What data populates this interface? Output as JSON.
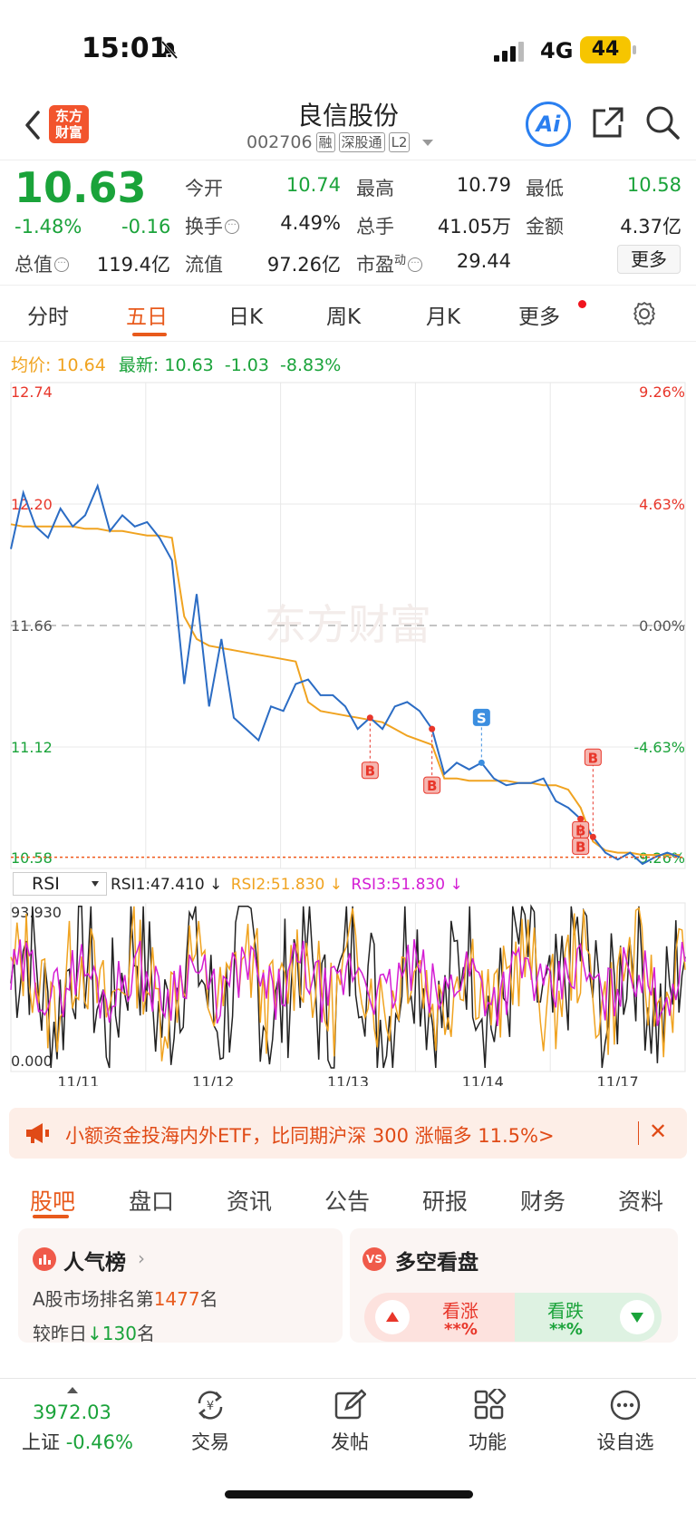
{
  "status_bar": {
    "time": "15:01",
    "network": "4G",
    "battery": "44"
  },
  "header": {
    "logo_text": "东方\n财富",
    "stock_name": "良信股份",
    "code": "002706",
    "tags": [
      "融",
      "深股通",
      "L2"
    ],
    "ai_label": "Ai"
  },
  "quote": {
    "price": "10.63",
    "change_pct": "-1.48%",
    "change_abs": "-0.16",
    "open_label": "今开",
    "open": "10.74",
    "high_label": "最高",
    "high": "10.79",
    "low_label": "最低",
    "low": "10.58",
    "turnover_label": "换手",
    "turnover": "4.49%",
    "volume_label": "总手",
    "volume": "41.05万",
    "amount_label": "金额",
    "amount": "4.37亿",
    "mktcap_label": "总值",
    "mktcap": "119.4亿",
    "float_label": "流值",
    "float_cap": "97.26亿",
    "pe_label": "市盈",
    "pe_sup": "动",
    "pe": "29.44",
    "more_label": "更多"
  },
  "chart_tabs": [
    "分时",
    "五日",
    "日K",
    "周K",
    "月K",
    "更多"
  ],
  "active_chart_tab": "五日",
  "avg_line": {
    "avg_label": "均价:",
    "avg": "10.64",
    "latest_label": "最新:",
    "latest": "10.63",
    "chg": "-1.03",
    "pct": "-8.83%"
  },
  "rsi": {
    "selector": "RSI",
    "rsi1": "RSI1:47.410 ↓",
    "rsi2": "RSI2:51.830 ↓",
    "rsi3": "RSI3:51.830 ↓"
  },
  "chart_data": {
    "type": "line",
    "x_ticks": [
      "11/11",
      "11/12",
      "11/13",
      "11/14",
      "11/17"
    ],
    "y_left_ticks": [
      "12.74",
      "12.20",
      "11.66",
      "11.12",
      "10.58"
    ],
    "y_right_ticks": [
      "9.26%",
      "4.63%",
      "0.00%",
      "-4.63%",
      "-9.26%"
    ],
    "ylim": [
      10.58,
      12.74
    ],
    "prev_close": 11.66,
    "last_price": 10.63,
    "series": [
      {
        "name": "价格",
        "color": "#2b6cc4",
        "values": [
          12.0,
          12.25,
          12.1,
          12.05,
          12.18,
          12.1,
          12.15,
          12.28,
          12.08,
          12.15,
          12.1,
          12.12,
          12.05,
          11.95,
          11.4,
          11.8,
          11.3,
          11.6,
          11.25,
          11.2,
          11.15,
          11.3,
          11.28,
          11.4,
          11.42,
          11.35,
          11.35,
          11.3,
          11.2,
          11.25,
          11.2,
          11.3,
          11.32,
          11.28,
          11.2,
          11.0,
          11.05,
          11.02,
          11.05,
          10.98,
          10.95,
          10.96,
          10.96,
          10.98,
          10.88,
          10.85,
          10.8,
          10.72,
          10.65,
          10.62,
          10.65,
          10.6,
          10.63,
          10.65,
          10.63
        ]
      },
      {
        "name": "均价",
        "color": "#f0a320",
        "values": [
          12.11,
          12.1,
          12.1,
          12.1,
          12.1,
          12.1,
          12.09,
          12.09,
          12.08,
          12.08,
          12.07,
          12.06,
          12.06,
          12.05,
          11.7,
          11.6,
          11.57,
          11.56,
          11.55,
          11.54,
          11.53,
          11.52,
          11.51,
          11.5,
          11.32,
          11.28,
          11.27,
          11.26,
          11.25,
          11.24,
          11.23,
          11.2,
          11.17,
          11.15,
          11.13,
          10.98,
          10.98,
          10.97,
          10.97,
          10.97,
          10.97,
          10.96,
          10.96,
          10.95,
          10.95,
          10.93,
          10.85,
          10.7,
          10.66,
          10.65,
          10.65,
          10.64,
          10.64,
          10.64,
          10.64
        ]
      }
    ],
    "rsi_ylim": [
      0,
      93.93
    ],
    "rsi_labels": [
      "93.930",
      "0.000"
    ],
    "trade_marks": [
      "B",
      "B",
      "S",
      "B",
      "B",
      "B"
    ],
    "watermark": "东方财富"
  },
  "banner": {
    "text": "小额资金投海内外ETF，比同期沪深 300 涨幅多 11.5%>",
    "close": "✕"
  },
  "section_tabs": [
    "股吧",
    "盘口",
    "资讯",
    "公告",
    "研报",
    "财务",
    "资料"
  ],
  "popularity": {
    "title": "人气榜",
    "rank_prefix": "A股市场排名第",
    "rank": "1477",
    "rank_suffix": "名",
    "cmp_prefix": "较昨日",
    "cmp": "130",
    "cmp_suffix": "名"
  },
  "sentiment": {
    "title": "多空看盘",
    "bull": "看涨",
    "bull_val": "**%",
    "bear": "看跌",
    "bear_val": "**%"
  },
  "bottom_bar": {
    "index_value": "3972.03",
    "index_name": "上证",
    "index_pct": "-0.46%",
    "items": [
      "交易",
      "发帖",
      "功能",
      "设自选"
    ]
  }
}
